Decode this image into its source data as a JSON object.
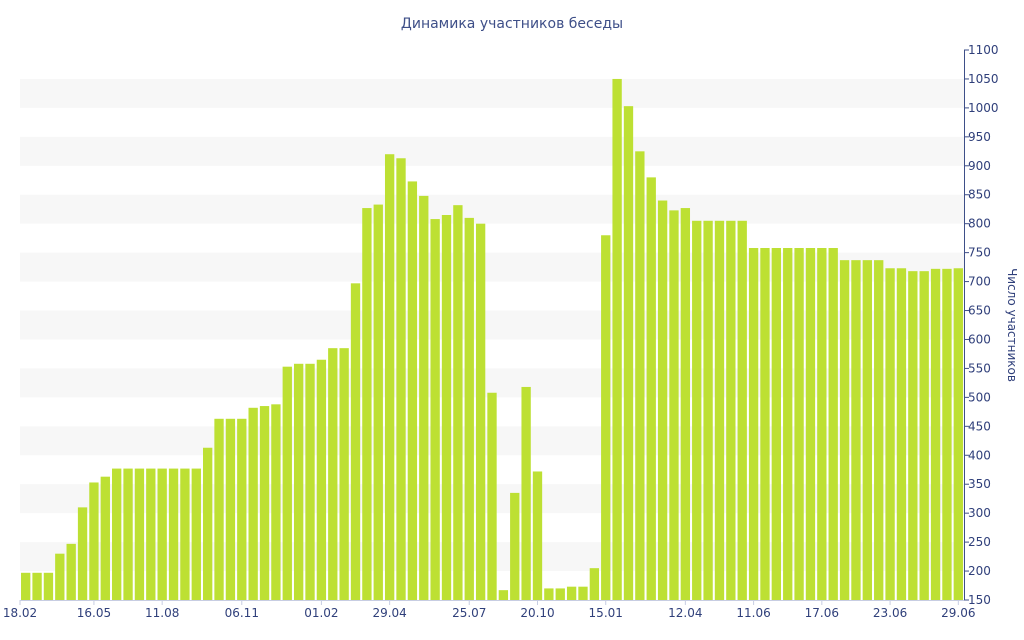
{
  "chart_data": {
    "type": "bar",
    "title": "Динамика участников беседы",
    "ylabel": "Число участников",
    "xlabel": "",
    "ylim": [
      150,
      1100
    ],
    "y_ticks": [
      150,
      200,
      250,
      300,
      350,
      400,
      450,
      500,
      550,
      600,
      650,
      700,
      750,
      800,
      850,
      900,
      950,
      1000,
      1050,
      1100
    ],
    "y_axis_side": "right",
    "grid": "horizontal alternating bands",
    "bar_color": "#bde033",
    "x_tick_labels": [
      {
        "index": 0,
        "label": "18.02"
      },
      {
        "index": 6.5,
        "label": "16.05"
      },
      {
        "index": 12.5,
        "label": "11.08"
      },
      {
        "index": 19.5,
        "label": "06.11"
      },
      {
        "index": 26.5,
        "label": "01.02"
      },
      {
        "index": 32.5,
        "label": "29.04"
      },
      {
        "index": 39.5,
        "label": "25.07"
      },
      {
        "index": 45.5,
        "label": "20.10"
      },
      {
        "index": 51.5,
        "label": "15.01"
      },
      {
        "index": 58.5,
        "label": "12.04"
      },
      {
        "index": 64.5,
        "label": "11.06"
      },
      {
        "index": 70.5,
        "label": "17.06"
      },
      {
        "index": 76.5,
        "label": "23.06"
      },
      {
        "index": 82.5,
        "label": "29.06"
      }
    ],
    "values": [
      197,
      197,
      197,
      230,
      247,
      310,
      353,
      363,
      377,
      377,
      377,
      377,
      377,
      377,
      377,
      377,
      413,
      463,
      463,
      463,
      482,
      485,
      488,
      553,
      558,
      558,
      565,
      585,
      585,
      697,
      827,
      833,
      920,
      913,
      873,
      848,
      808,
      815,
      832,
      810,
      800,
      508,
      167,
      335,
      518,
      372,
      170,
      170,
      173,
      173,
      205,
      780,
      1050,
      1003,
      925,
      880,
      840,
      823,
      827,
      805,
      805,
      805,
      805,
      805,
      758,
      758,
      758,
      758,
      758,
      758,
      758,
      758,
      737,
      737,
      737,
      737,
      723,
      723,
      718,
      718,
      722,
      722,
      723
    ]
  }
}
